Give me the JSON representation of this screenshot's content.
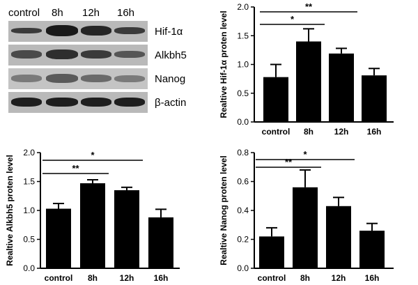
{
  "western_blot": {
    "lanes": [
      "control",
      "8h",
      "12h",
      "16h"
    ],
    "rows": [
      {
        "label": "Hif-1α"
      },
      {
        "label": "Alkbh5"
      },
      {
        "label": "Nanog"
      },
      {
        "label": "β-actin"
      }
    ]
  },
  "chart_data": [
    {
      "type": "bar",
      "categories": [
        "control",
        "8h",
        "12h",
        "16h"
      ],
      "values": [
        0.78,
        1.4,
        1.19,
        0.81
      ],
      "errors": [
        0.22,
        0.22,
        0.09,
        0.12
      ],
      "ylabel": "Realtive Hif-1α proten level",
      "ylim": [
        0,
        2.0
      ],
      "yticks": [
        "0.0",
        "0.5",
        "1.0",
        "1.5",
        "2.0"
      ],
      "significance": [
        {
          "from": 0,
          "to": 1,
          "label": "*"
        },
        {
          "from": 0,
          "to": 2,
          "label": "**"
        }
      ]
    },
    {
      "type": "bar",
      "categories": [
        "control",
        "8h",
        "12h",
        "16h"
      ],
      "values": [
        1.03,
        1.47,
        1.35,
        0.88
      ],
      "errors": [
        0.09,
        0.06,
        0.05,
        0.14
      ],
      "ylabel": "Realtive Alkbh5  proten level",
      "ylim": [
        0,
        2.0
      ],
      "yticks": [
        "0.0",
        "0.5",
        "1.0",
        "1.5",
        "2.0"
      ],
      "significance": [
        {
          "from": 0,
          "to": 1,
          "label": "**"
        },
        {
          "from": 0,
          "to": 2,
          "label": "*"
        }
      ]
    },
    {
      "type": "bar",
      "categories": [
        "control",
        "8h",
        "12h",
        "16h"
      ],
      "values": [
        0.22,
        0.56,
        0.43,
        0.26
      ],
      "errors": [
        0.06,
        0.12,
        0.06,
        0.05
      ],
      "ylabel": "Realtive Nanog  proten level",
      "ylim": [
        0,
        0.8
      ],
      "yticks": [
        "0.0",
        "0.2",
        "0.4",
        "0.6",
        "0.8"
      ],
      "significance": [
        {
          "from": 0,
          "to": 1,
          "label": "**"
        },
        {
          "from": 0,
          "to": 2,
          "label": "*"
        }
      ]
    }
  ]
}
